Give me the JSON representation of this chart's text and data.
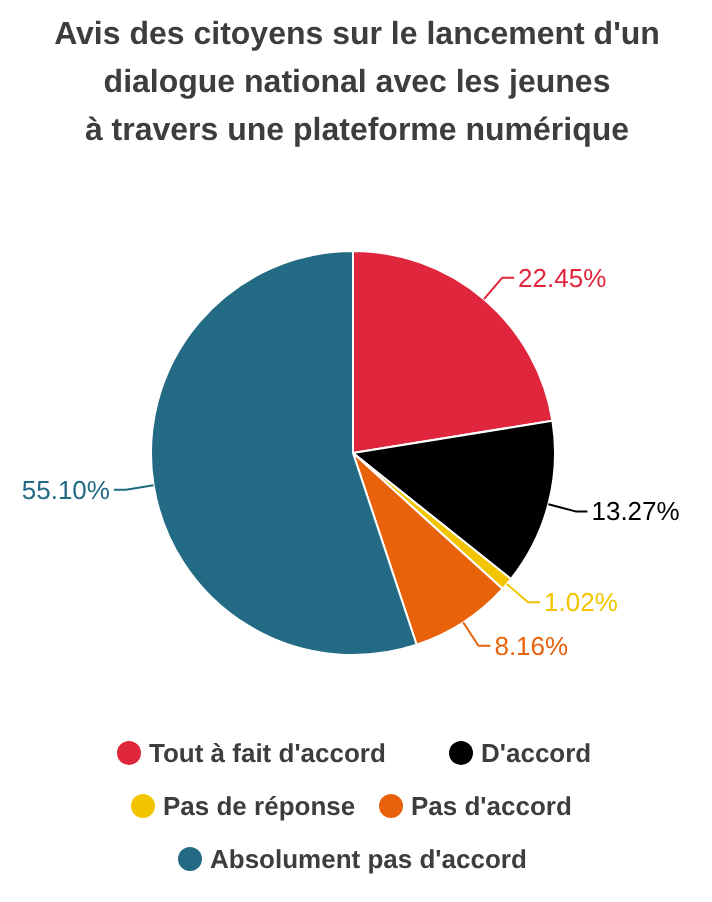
{
  "chart_data": {
    "type": "pie",
    "title": "Avis des citoyens sur le lancement d'un\ndialogue national avec les jeunes\nà travers une plateforme numérique",
    "categories": [
      "Tout à fait d'accord",
      "D'accord",
      "Pas de réponse",
      "Pas d'accord",
      "Absolument pas d'accord"
    ],
    "values": [
      22.45,
      13.27,
      1.02,
      8.16,
      55.1
    ],
    "colors": [
      "#e0263c",
      "#000000",
      "#f2c500",
      "#e8620c",
      "#236b84"
    ],
    "value_labels": [
      "22.45%",
      "13.27%",
      "1.02%",
      "8.16%",
      "55.10%"
    ],
    "legend": "bottom"
  }
}
